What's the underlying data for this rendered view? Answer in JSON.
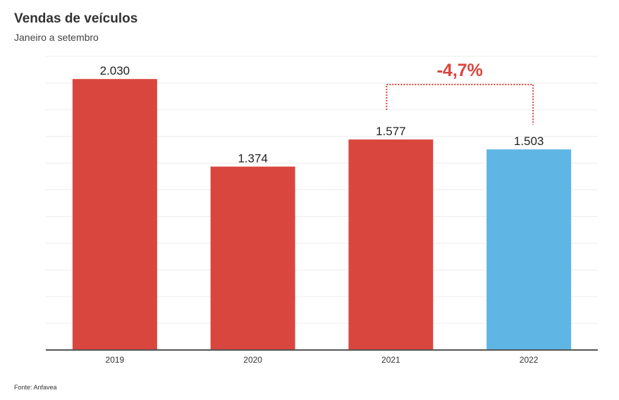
{
  "title": "Vendas de veículos",
  "subtitle": "Janeiro a setembro",
  "source": "Fonte: Anfavea",
  "chart_data": {
    "type": "bar",
    "categories": [
      "2019",
      "2020",
      "2021",
      "2022"
    ],
    "values": [
      2030,
      1374,
      1577,
      1503
    ],
    "value_labels": [
      "2.030",
      "1.374",
      "1.577",
      "1.503"
    ],
    "bar_colors": [
      "#d9463e",
      "#d9463e",
      "#d9463e",
      "#5fb6e5"
    ],
    "ylim": [
      0,
      2200
    ],
    "grid": true,
    "annotation": {
      "text": "-4,7%",
      "from": "2021",
      "to": "2022",
      "color": "#d9463e"
    }
  }
}
